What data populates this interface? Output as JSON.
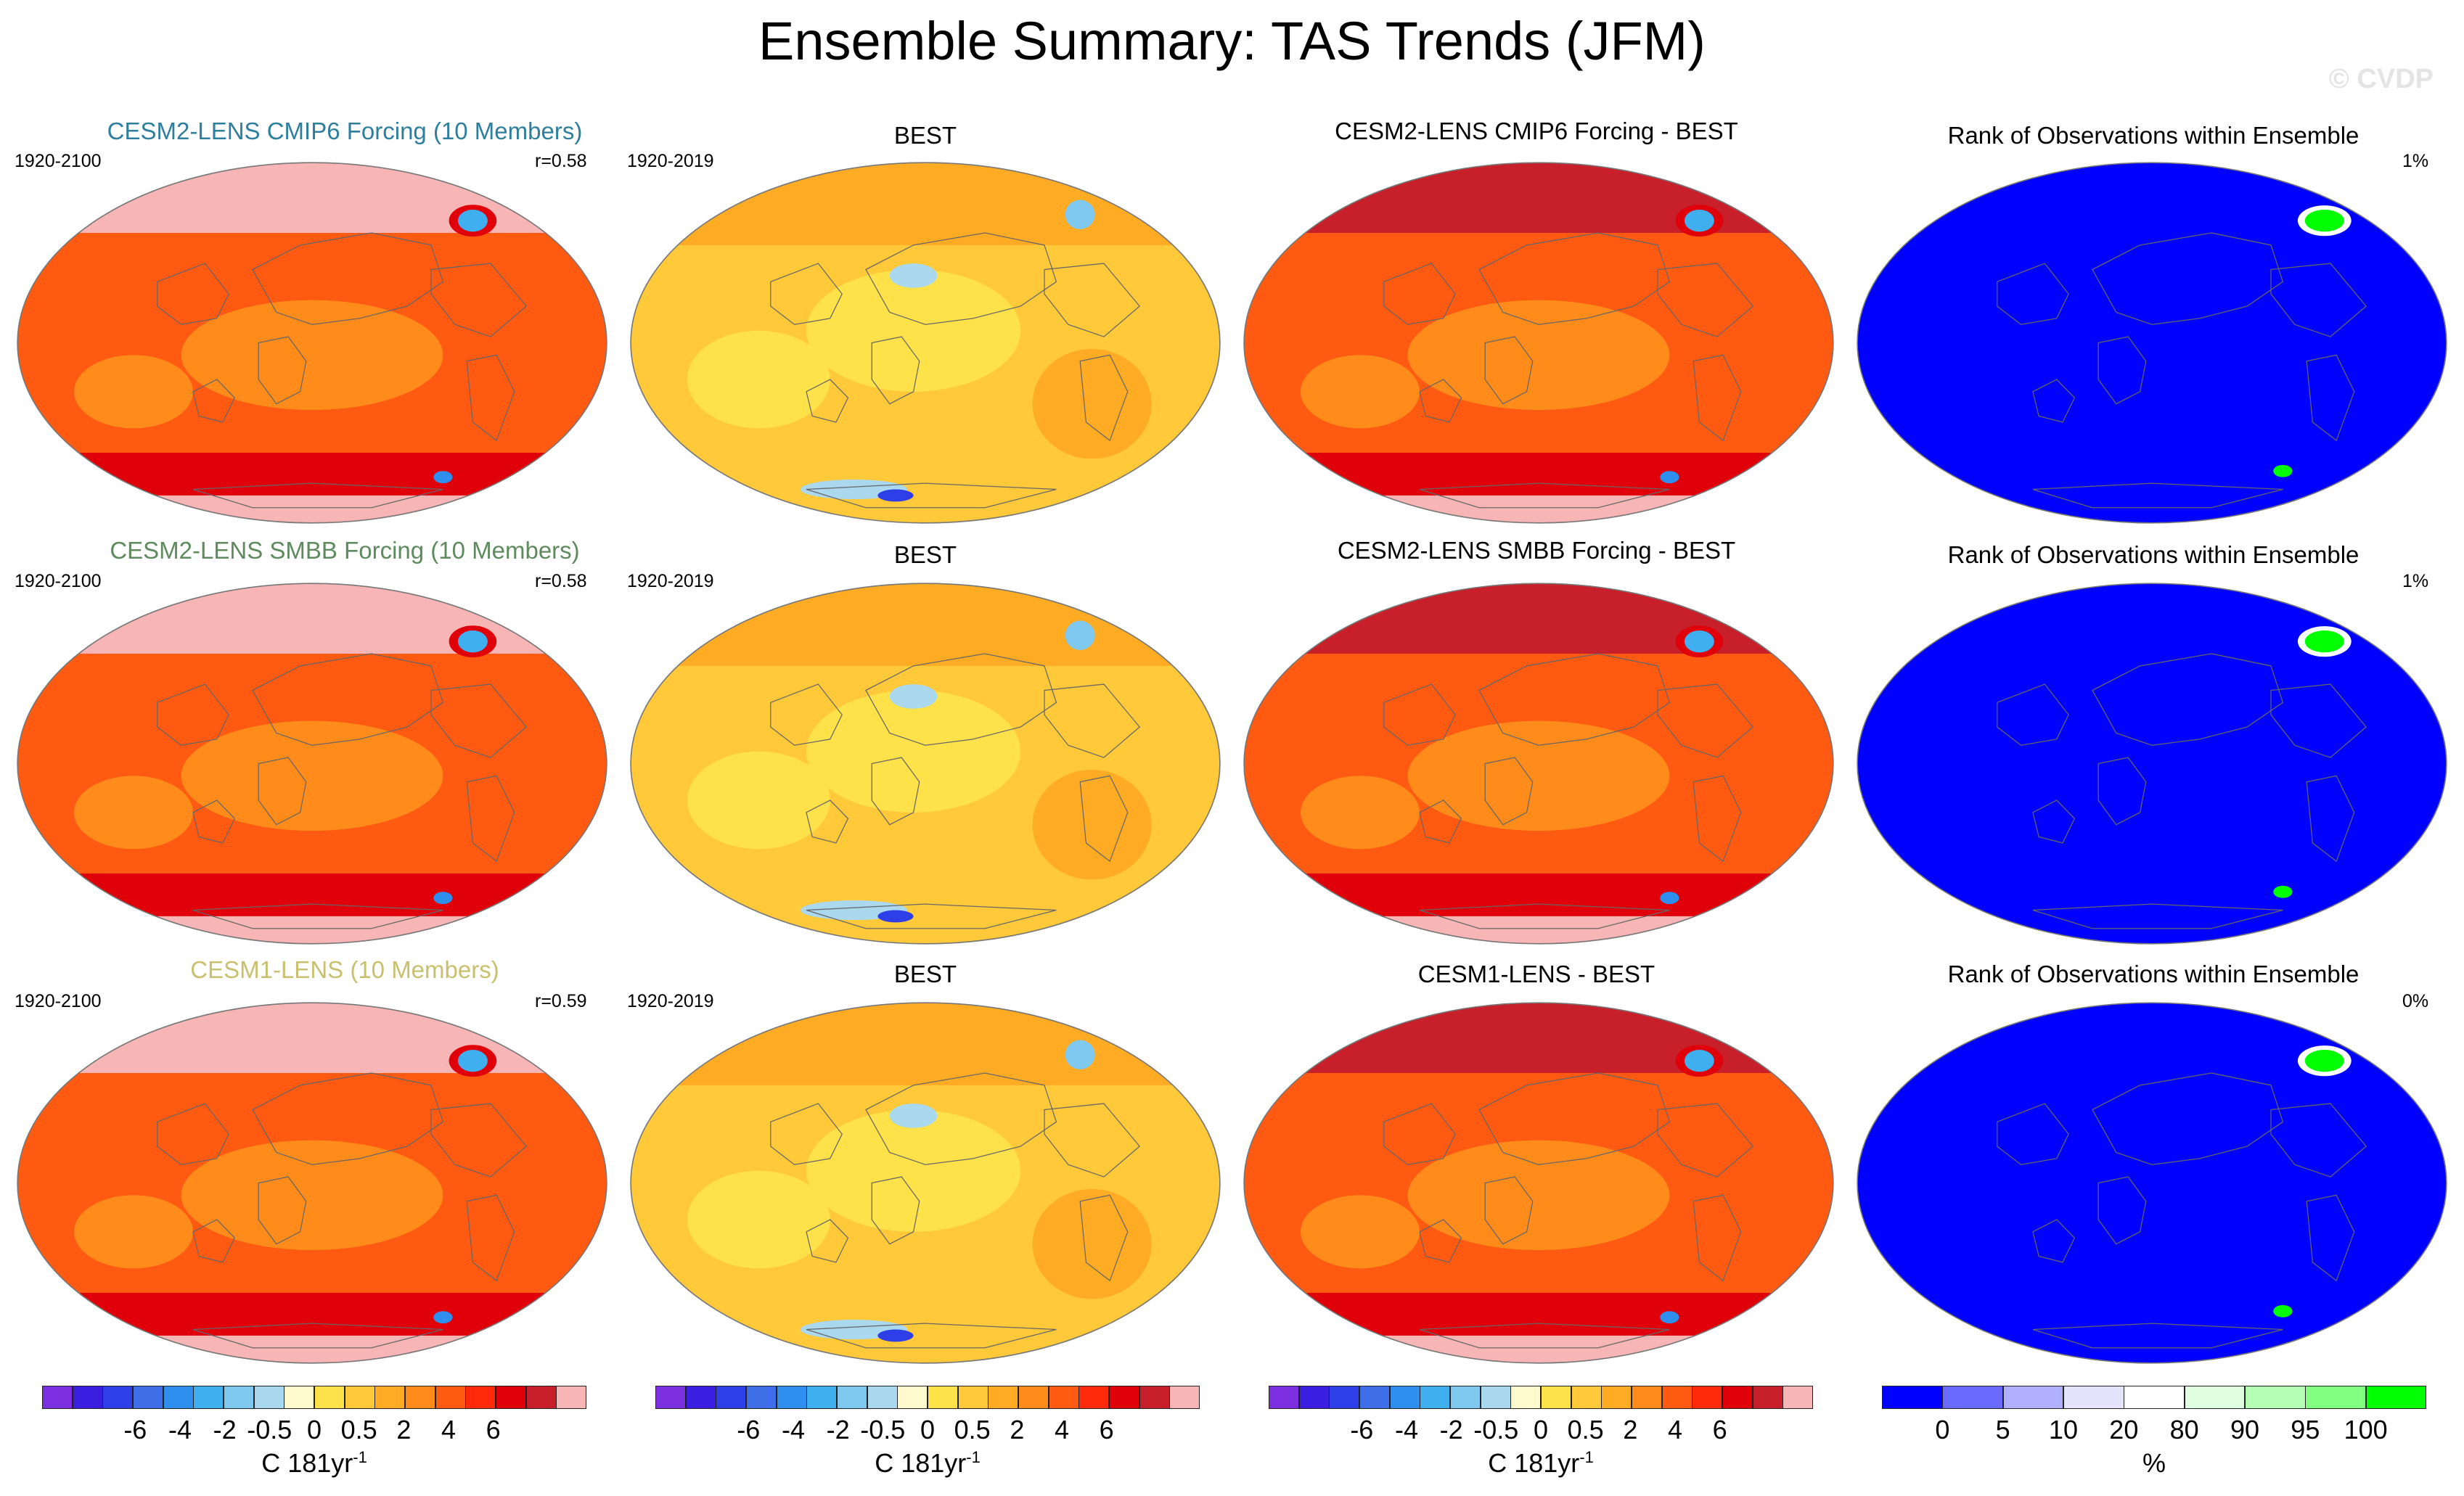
{
  "header": {
    "title": "Ensemble Summary: TAS Trends (JFM)",
    "credit": "© CVDP"
  },
  "colors": {
    "trend_scale": [
      "#7b2fe0",
      "#3b1fe0",
      "#2f3fe8",
      "#3f6fe8",
      "#2f8fef",
      "#3fafef",
      "#7fc8f0",
      "#a9d8ef",
      "#fffacd",
      "#ffe24a",
      "#ffc93a",
      "#ffac24",
      "#ff8c1a",
      "#ff5a12",
      "#ff2a0a",
      "#e0000a",
      "#c8202a",
      "#f7b5b5"
    ],
    "rank_scale": [
      "#0000ff",
      "#6a6aff",
      "#b0b0ff",
      "#e4e4ff",
      "#ffffff",
      "#e0ffe0",
      "#b4ffb4",
      "#80ff80",
      "#00ff00"
    ],
    "cesm2_cmip6_title": "#2e7e9e",
    "cesm2_smbb_title": "#5e8a5e",
    "cesm1_title": "#c8c06e"
  },
  "rows": [
    {
      "model": {
        "title": "CESM2-LENS CMIP6 Forcing (10 Members)",
        "period": "1920-2100",
        "corr": "r=0.58"
      },
      "obs": {
        "title": "BEST",
        "period": "1920-2019"
      },
      "diff": {
        "title": "CESM2-LENS CMIP6 Forcing - BEST"
      },
      "rank": {
        "title": "Rank of Observations within Ensemble",
        "pct": "1%"
      }
    },
    {
      "model": {
        "title": "CESM2-LENS SMBB Forcing (10 Members)",
        "period": "1920-2100",
        "corr": "r=0.58"
      },
      "obs": {
        "title": "BEST",
        "period": "1920-2019"
      },
      "diff": {
        "title": "CESM2-LENS SMBB Forcing - BEST"
      },
      "rank": {
        "title": "Rank of Observations within Ensemble",
        "pct": "1%"
      }
    },
    {
      "model": {
        "title": "CESM1-LENS (10 Members)",
        "period": "1920-2100",
        "corr": "r=0.59"
      },
      "obs": {
        "title": "BEST",
        "period": "1920-2019"
      },
      "diff": {
        "title": "CESM1-LENS - BEST"
      },
      "rank": {
        "title": "Rank of Observations within Ensemble",
        "pct": "0%"
      }
    }
  ],
  "colorbars": {
    "trend_ticks": [
      "-6",
      "-4",
      "-2",
      "-0.5",
      "0",
      "0.5",
      "2",
      "4",
      "6"
    ],
    "trend_unit": "C 181yr",
    "trend_unit_sup": "-1",
    "rank_ticks": [
      "0",
      "5",
      "10",
      "20",
      "80",
      "90",
      "95",
      "100"
    ],
    "rank_unit": "%"
  },
  "chart_data": [
    {
      "type": "heatmap",
      "title": "CESM2-LENS CMIP6 Forcing (10 Members)",
      "subtitle": "1920-2100",
      "annotation": "r=0.58",
      "colorbar_ticks": [
        "-6",
        "-4",
        "-2",
        "-0.5",
        "0",
        "0.5",
        "2",
        "4",
        "6"
      ],
      "colorbar_label": "C 181yr-1"
    },
    {
      "type": "heatmap",
      "title": "BEST",
      "subtitle": "1920-2019"
    },
    {
      "type": "heatmap",
      "title": "CESM2-LENS CMIP6 Forcing - BEST"
    },
    {
      "type": "heatmap",
      "title": "Rank of Observations within Ensemble",
      "annotation": "1%",
      "colorbar_ticks": [
        "0",
        "5",
        "10",
        "20",
        "80",
        "90",
        "95",
        "100"
      ],
      "colorbar_label": "%"
    },
    {
      "type": "heatmap",
      "title": "CESM2-LENS SMBB Forcing (10 Members)",
      "subtitle": "1920-2100",
      "annotation": "r=0.58"
    },
    {
      "type": "heatmap",
      "title": "BEST",
      "subtitle": "1920-2019"
    },
    {
      "type": "heatmap",
      "title": "CESM2-LENS SMBB Forcing - BEST"
    },
    {
      "type": "heatmap",
      "title": "Rank of Observations within Ensemble",
      "annotation": "1%"
    },
    {
      "type": "heatmap",
      "title": "CESM1-LENS (10 Members)",
      "subtitle": "1920-2100",
      "annotation": "r=0.59"
    },
    {
      "type": "heatmap",
      "title": "BEST",
      "subtitle": "1920-2019"
    },
    {
      "type": "heatmap",
      "title": "CESM1-LENS - BEST"
    },
    {
      "type": "heatmap",
      "title": "Rank of Observations within Ensemble",
      "annotation": "0%"
    }
  ]
}
